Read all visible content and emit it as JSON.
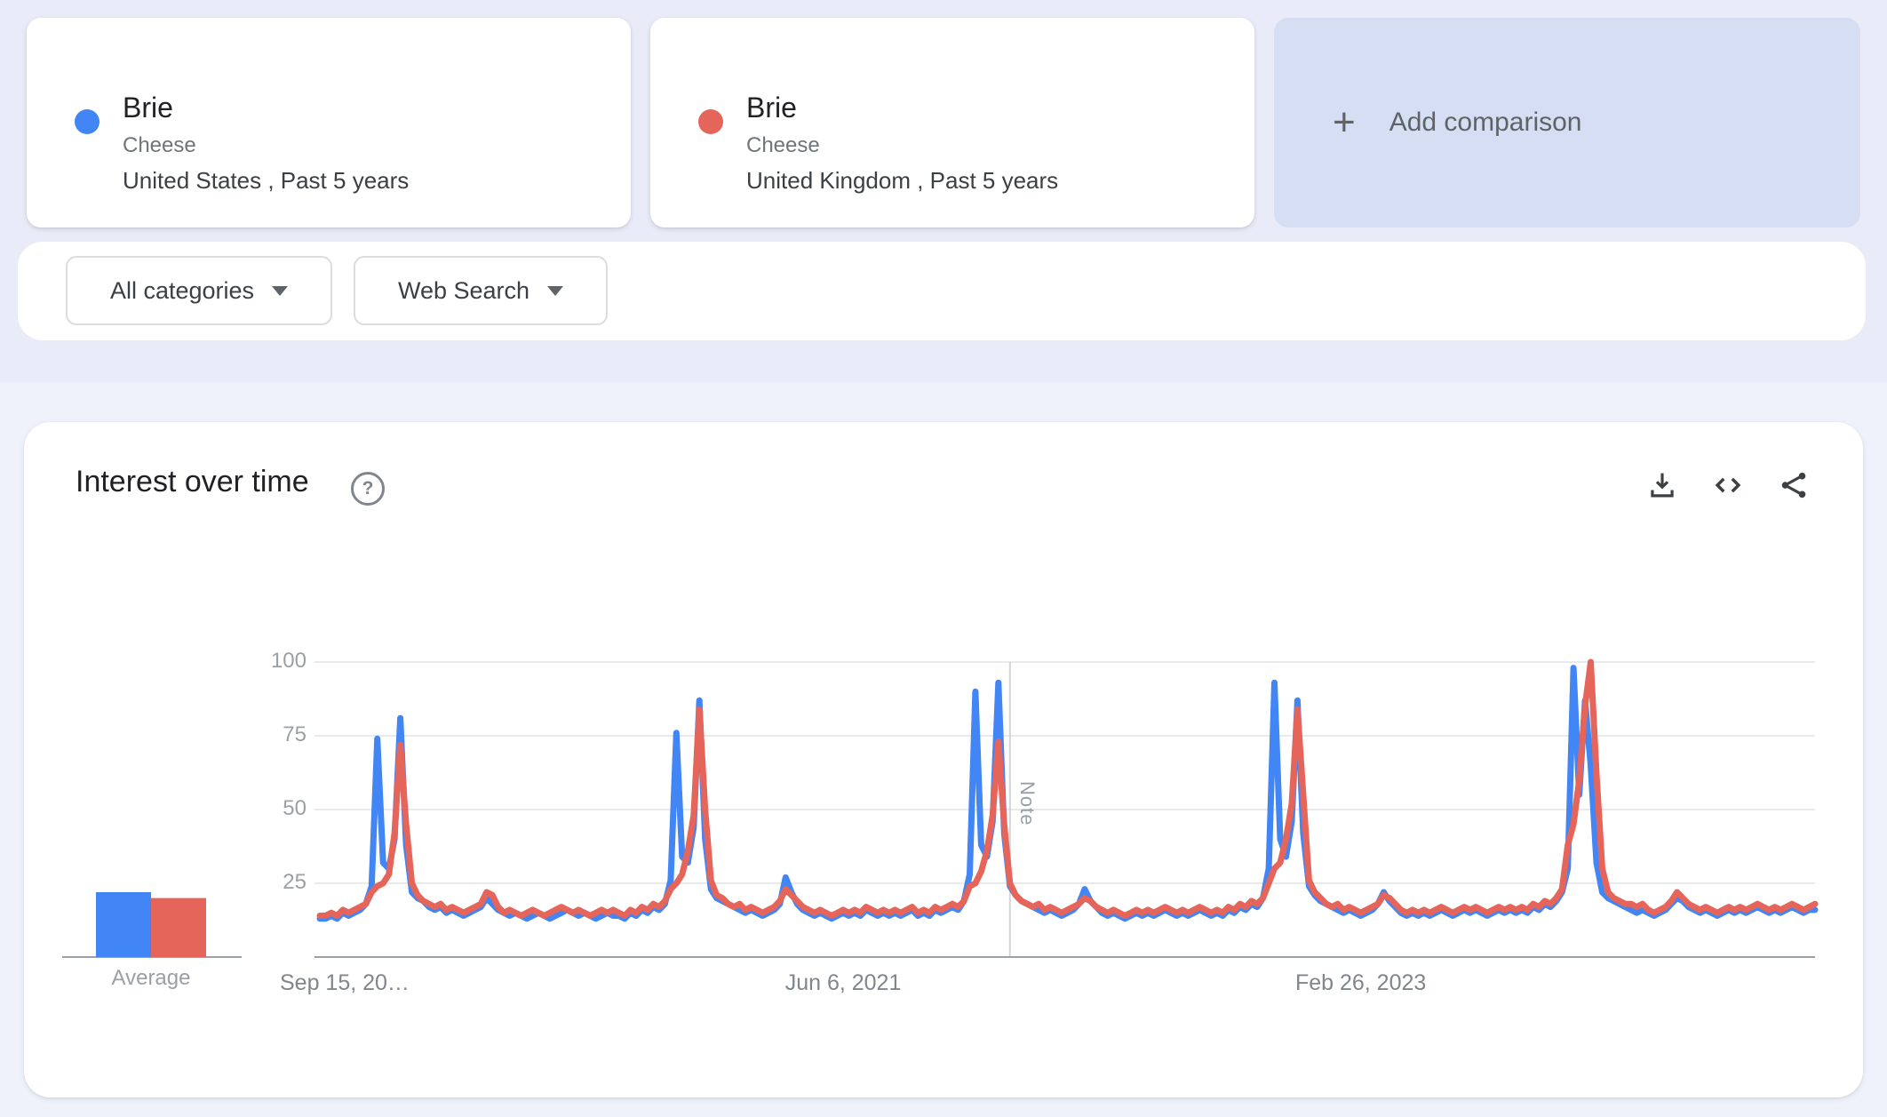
{
  "comparisons": [
    {
      "term": "Brie",
      "category": "Cheese",
      "scope": "United States , Past 5 years",
      "color": "#4285f4"
    },
    {
      "term": "Brie",
      "category": "Cheese",
      "scope": "United Kingdom , Past 5 years",
      "color": "#e5655a"
    }
  ],
  "add_comparison_label": "Add comparison",
  "filters": {
    "category": "All categories",
    "search_type": "Web Search"
  },
  "chart_header": {
    "title": "Interest over time",
    "help_icon": "question-mark-icon",
    "action_icons": [
      "download-icon",
      "embed-code-icon",
      "share-icon"
    ]
  },
  "chart_data": {
    "type": "line",
    "title": "Interest over time",
    "xlabel": "",
    "ylabel": "",
    "ylim": [
      0,
      100
    ],
    "grid": true,
    "legend_position": "none",
    "y_ticks": [
      25,
      50,
      75,
      100
    ],
    "x_ticks": [
      {
        "label": "Sep 15, 20…",
        "index": 0,
        "align": "start"
      },
      {
        "label": "Jun 6, 2021",
        "index": 91,
        "align": "center"
      },
      {
        "label": "Feb 26, 2023",
        "index": 181,
        "align": "center"
      }
    ],
    "note_marker": {
      "label": "Note",
      "index": 120
    },
    "series": [
      {
        "name": "Brie (United States)",
        "color": "#4285f4",
        "values": [
          13,
          13,
          14,
          13,
          15,
          14,
          15,
          16,
          18,
          24,
          74,
          32,
          30,
          40,
          81,
          38,
          22,
          20,
          19,
          17,
          16,
          17,
          15,
          16,
          15,
          14,
          15,
          16,
          17,
          20,
          18,
          16,
          15,
          14,
          15,
          14,
          13,
          14,
          15,
          14,
          13,
          14,
          15,
          16,
          15,
          14,
          15,
          14,
          13,
          14,
          15,
          14,
          14,
          13,
          15,
          14,
          16,
          15,
          17,
          16,
          18,
          26,
          76,
          34,
          32,
          44,
          87,
          40,
          23,
          20,
          19,
          18,
          17,
          16,
          15,
          16,
          15,
          14,
          15,
          16,
          18,
          27,
          22,
          18,
          16,
          15,
          14,
          15,
          14,
          13,
          14,
          15,
          14,
          15,
          14,
          16,
          15,
          14,
          15,
          14,
          15,
          14,
          15,
          16,
          14,
          15,
          14,
          16,
          15,
          16,
          17,
          16,
          19,
          28,
          90,
          38,
          34,
          46,
          93,
          42,
          24,
          21,
          19,
          18,
          17,
          16,
          15,
          16,
          15,
          14,
          15,
          16,
          18,
          23,
          19,
          17,
          15,
          14,
          15,
          14,
          13,
          14,
          15,
          14,
          15,
          14,
          15,
          16,
          15,
          14,
          15,
          14,
          15,
          16,
          15,
          14,
          15,
          14,
          16,
          15,
          17,
          16,
          18,
          17,
          20,
          30,
          93,
          40,
          34,
          46,
          87,
          42,
          24,
          21,
          19,
          18,
          17,
          16,
          15,
          16,
          15,
          14,
          15,
          16,
          18,
          22,
          19,
          17,
          15,
          14,
          15,
          14,
          15,
          14,
          15,
          16,
          15,
          14,
          15,
          16,
          15,
          16,
          15,
          14,
          15,
          16,
          15,
          16,
          15,
          16,
          15,
          17,
          16,
          18,
          17,
          19,
          22,
          30,
          98,
          55,
          87,
          65,
          32,
          22,
          20,
          19,
          18,
          17,
          16,
          15,
          16,
          15,
          14,
          15,
          16,
          18,
          20,
          19,
          17,
          16,
          15,
          16,
          15,
          14,
          15,
          16,
          15,
          16,
          15,
          16,
          17,
          16,
          15,
          16,
          15,
          16,
          17,
          16,
          15,
          16,
          16
        ]
      },
      {
        "name": "Brie (United Kingdom)",
        "color": "#e5655a",
        "values": [
          14,
          14,
          15,
          14,
          16,
          15,
          16,
          17,
          18,
          22,
          24,
          25,
          28,
          42,
          72,
          45,
          25,
          21,
          19,
          18,
          17,
          18,
          16,
          17,
          16,
          15,
          16,
          17,
          18,
          22,
          21,
          17,
          15,
          16,
          15,
          14,
          15,
          16,
          15,
          14,
          15,
          16,
          17,
          16,
          15,
          16,
          15,
          14,
          15,
          16,
          15,
          16,
          15,
          14,
          16,
          15,
          17,
          16,
          18,
          17,
          19,
          23,
          25,
          28,
          36,
          48,
          84,
          50,
          26,
          21,
          20,
          18,
          17,
          18,
          16,
          17,
          16,
          15,
          16,
          17,
          19,
          23,
          21,
          19,
          17,
          16,
          15,
          16,
          15,
          14,
          15,
          16,
          15,
          16,
          15,
          17,
          16,
          15,
          16,
          15,
          16,
          15,
          16,
          17,
          15,
          16,
          15,
          17,
          16,
          17,
          18,
          17,
          19,
          24,
          25,
          29,
          36,
          48,
          73,
          45,
          25,
          21,
          19,
          18,
          17,
          18,
          16,
          17,
          16,
          15,
          16,
          17,
          18,
          20,
          19,
          17,
          16,
          15,
          16,
          15,
          14,
          15,
          16,
          15,
          16,
          15,
          16,
          17,
          16,
          15,
          16,
          15,
          16,
          17,
          16,
          15,
          16,
          15,
          17,
          16,
          18,
          17,
          19,
          18,
          20,
          25,
          30,
          32,
          40,
          52,
          84,
          55,
          26,
          22,
          20,
          18,
          17,
          18,
          16,
          17,
          16,
          15,
          16,
          17,
          18,
          21,
          20,
          18,
          16,
          15,
          16,
          15,
          16,
          15,
          16,
          17,
          16,
          15,
          16,
          17,
          16,
          17,
          16,
          15,
          16,
          17,
          16,
          17,
          16,
          17,
          16,
          18,
          17,
          19,
          18,
          20,
          23,
          38,
          45,
          60,
          85,
          100,
          62,
          30,
          22,
          20,
          19,
          18,
          18,
          17,
          18,
          16,
          15,
          16,
          17,
          19,
          22,
          20,
          18,
          17,
          16,
          17,
          16,
          15,
          16,
          17,
          16,
          17,
          16,
          17,
          18,
          17,
          16,
          17,
          16,
          17,
          18,
          17,
          16,
          17,
          18
        ]
      }
    ],
    "averages": {
      "label": "Average",
      "values": [
        {
          "name": "Brie (United States)",
          "value": 22,
          "color": "#4285f4"
        },
        {
          "name": "Brie (United Kingdom)",
          "value": 20,
          "color": "#e5655a"
        }
      ]
    }
  }
}
